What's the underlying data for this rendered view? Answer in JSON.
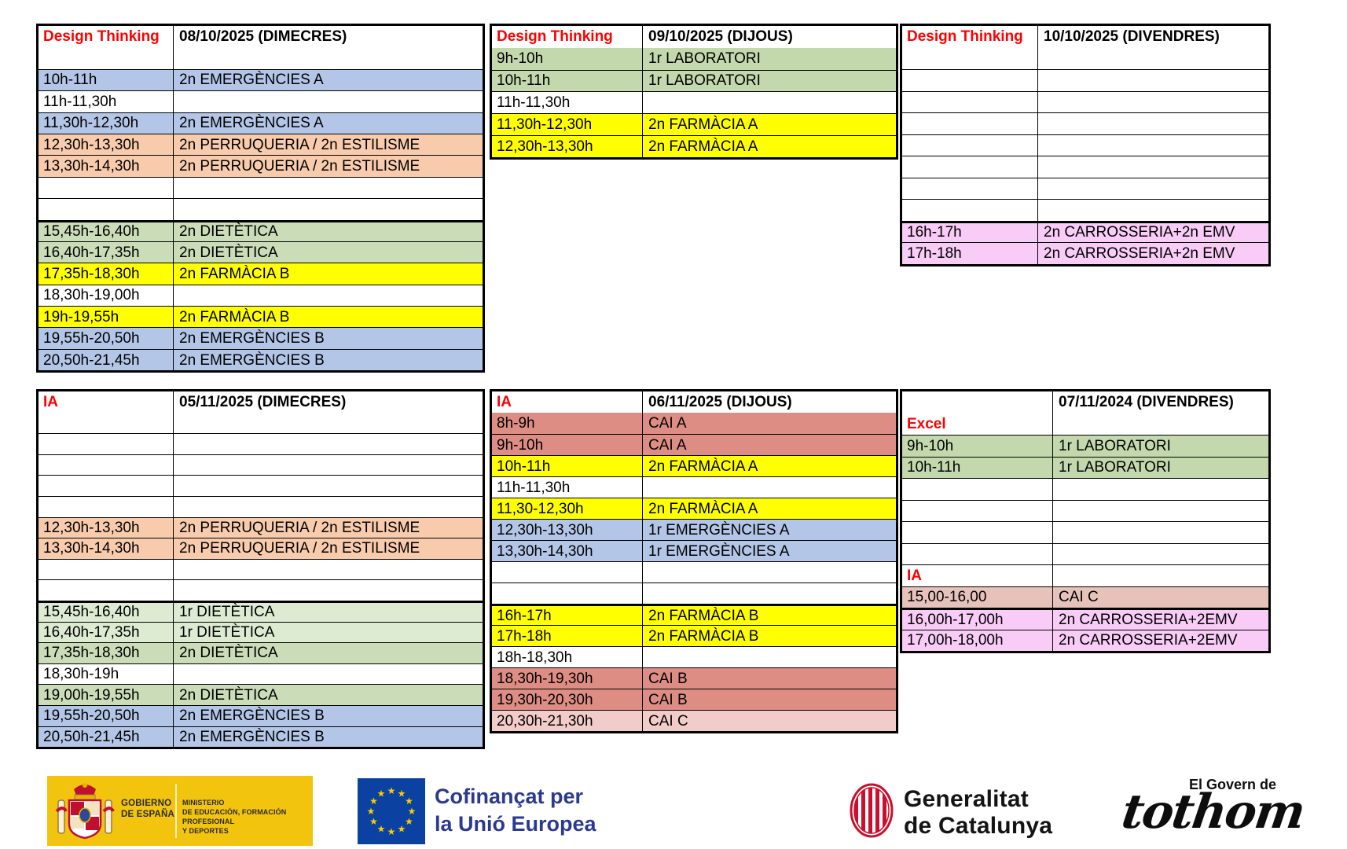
{
  "colors": {
    "blue": "#b4c6e7",
    "peach": "#f8cbad",
    "green": "#cadcb8",
    "green1": "#ddebd2",
    "lab": "#c3d9ad",
    "yellow": "#ffff00",
    "pink": "#f8ccf6",
    "salmon": "#dd8d84",
    "caic": "#f2ccc8",
    "caic2": "#e6c2bb",
    "label_red": "#fe0000",
    "border_black": "#000000"
  },
  "tables": [
    {
      "label": "Design Thinking",
      "date": "08/10/2025 (DIMECRES)",
      "rows": [
        {
          "time": "",
          "activity": ""
        },
        {
          "time": "10h-11h",
          "activity": "2n EMERGÈNCIES A",
          "color": "blue"
        },
        {
          "time": "11h-11,30h",
          "activity": ""
        },
        {
          "time": "11,30h-12,30h",
          "activity": "2n EMERGÈNCIES A",
          "color": "blue"
        },
        {
          "time": "12,30h-13,30h",
          "activity": "2n PERRUQUERIA / 2n ESTILISME",
          "color": "peach"
        },
        {
          "time": "13,30h-14,30h",
          "activity": "2n PERRUQUERIA / 2n ESTILISME",
          "color": "peach"
        },
        {
          "time": "",
          "activity": ""
        },
        {
          "time": "",
          "activity": ""
        },
        {
          "time": "15,45h-16,40h",
          "activity": "2n DIETÈTICA",
          "color": "green",
          "thick": true
        },
        {
          "time": "16,40h-17,35h",
          "activity": "2n DIETÈTICA",
          "color": "green"
        },
        {
          "time": "17,35h-18,30h",
          "activity": "2n FARMÀCIA B",
          "color": "yellow"
        },
        {
          "time": "18,30h-19,00h",
          "activity": ""
        },
        {
          "time": "19h-19,55h",
          "activity": "2n FARMÀCIA B",
          "color": "yellow"
        },
        {
          "time": "19,55h-20,50h",
          "activity": "2n EMERGÈNCIES B",
          "color": "blue"
        },
        {
          "time": "20,50h-21,45h",
          "activity": "2n EMERGÈNCIES B",
          "color": "blue"
        }
      ]
    },
    {
      "label": "Design Thinking",
      "date": "09/10/2025 (DIJOUS)",
      "rows": [
        {
          "time": "9h-10h",
          "activity": "1r LABORATORI",
          "color": "lab"
        },
        {
          "time": "10h-11h",
          "activity": "1r LABORATORI",
          "color": "lab"
        },
        {
          "time": "11h-11,30h",
          "activity": ""
        },
        {
          "time": "11,30h-12,30h",
          "activity": "2n FARMÀCIA A",
          "color": "yellow"
        },
        {
          "time": "12,30h-13,30h",
          "activity": "2n FARMÀCIA A",
          "color": "yellow"
        }
      ]
    },
    {
      "label": "Design Thinking",
      "date": "10/10/2025 (DIVENDRES)",
      "rows": [
        {
          "time": "",
          "activity": ""
        },
        {
          "time": "",
          "activity": ""
        },
        {
          "time": "",
          "activity": ""
        },
        {
          "time": "",
          "activity": ""
        },
        {
          "time": "",
          "activity": ""
        },
        {
          "time": "",
          "activity": ""
        },
        {
          "time": "",
          "activity": ""
        },
        {
          "time": "",
          "activity": ""
        },
        {
          "time": "16h-17h",
          "activity": "2n CARROSSERIA+2n EMV",
          "color": "pink",
          "thick": true
        },
        {
          "time": "17h-18h",
          "activity": "2n CARROSSERIA+2n EMV",
          "color": "pink"
        }
      ]
    },
    {
      "label": "IA",
      "date": "05/11/2025 (DIMECRES)",
      "rows": [
        {
          "time": "",
          "activity": ""
        },
        {
          "time": "",
          "activity": ""
        },
        {
          "time": "",
          "activity": ""
        },
        {
          "time": "",
          "activity": ""
        },
        {
          "time": "",
          "activity": ""
        },
        {
          "time": "12,30h-13,30h",
          "activity": "2n PERRUQUERIA / 2n ESTILISME",
          "color": "peach"
        },
        {
          "time": "13,30h-14,30h",
          "activity": "2n PERRUQUERIA / 2n ESTILISME",
          "color": "peach"
        },
        {
          "time": "",
          "activity": ""
        },
        {
          "time": "",
          "activity": ""
        },
        {
          "time": "15,45h-16,40h",
          "activity": "1r DIETÈTICA",
          "color": "green1",
          "thick": true
        },
        {
          "time": "16,40h-17,35h",
          "activity": "1r DIETÈTICA",
          "color": "green1"
        },
        {
          "time": "17,35h-18,30h",
          "activity": "2n DIETÈTICA",
          "color": "green"
        },
        {
          "time": "18,30h-19h",
          "activity": ""
        },
        {
          "time": "19,00h-19,55h",
          "activity": "2n DIETÈTICA",
          "color": "green"
        },
        {
          "time": "19,55h-20,50h",
          "activity": "2n EMERGÈNCIES B",
          "color": "blue"
        },
        {
          "time": "20,50h-21,45h",
          "activity": "2n EMERGÈNCIES B",
          "color": "blue"
        }
      ]
    },
    {
      "label": "IA",
      "date": "06/11/2025 (DIJOUS)",
      "rows": [
        {
          "time": "8h-9h",
          "activity": "CAI A",
          "color": "salmon"
        },
        {
          "time": "9h-10h",
          "activity": "CAI A",
          "color": "salmon"
        },
        {
          "time": "10h-11h",
          "activity": "2n FARMÀCIA A",
          "color": "yellow"
        },
        {
          "time": "11h-11,30h",
          "activity": ""
        },
        {
          "time": "11,30-12,30h",
          "activity": "2n FARMÀCIA A",
          "color": "yellow"
        },
        {
          "time": "12,30h-13,30h",
          "activity": "1r EMERGÈNCIES A",
          "color": "blue"
        },
        {
          "time": "13,30h-14,30h",
          "activity": "1r EMERGÈNCIES A",
          "color": "blue"
        },
        {
          "time": "",
          "activity": ""
        },
        {
          "time": "",
          "activity": ""
        },
        {
          "time": "16h-17h",
          "activity": "2n FARMÀCIA B",
          "color": "yellow",
          "thick": true
        },
        {
          "time": "17h-18h",
          "activity": "2n FARMÀCIA B",
          "color": "yellow"
        },
        {
          "time": "18h-18,30h",
          "activity": ""
        },
        {
          "time": "18,30h-19,30h",
          "activity": "CAI B",
          "color": "salmon"
        },
        {
          "time": "19,30h-20,30h",
          "activity": "CAI B",
          "color": "salmon"
        },
        {
          "time": "20,30h-21,30h",
          "activity": "CAI C",
          "color": "caic"
        }
      ]
    },
    {
      "label": "",
      "date": "07/11/2024 (DIVENDRES)",
      "rows": [
        {
          "time": "Excel",
          "activity": "",
          "red": true
        },
        {
          "time": "9h-10h",
          "activity": "1r LABORATORI",
          "color": "lab"
        },
        {
          "time": "10h-11h",
          "activity": "1r LABORATORI",
          "color": "lab"
        },
        {
          "time": "",
          "activity": ""
        },
        {
          "time": "",
          "activity": ""
        },
        {
          "time": "",
          "activity": ""
        },
        {
          "time": "",
          "activity": ""
        },
        {
          "time": "IA",
          "activity": "",
          "red": true
        },
        {
          "time": "15,00-16,00",
          "activity": "CAI C",
          "color": "caic2"
        },
        {
          "time": "16,00h-17,00h",
          "activity": "2n CARROSSERIA+2EMV",
          "color": "pink",
          "thick": true
        },
        {
          "time": "17,00h-18,00h",
          "activity": "2n CARROSSERIA+2EMV",
          "color": "pink"
        }
      ]
    }
  ],
  "footer": {
    "spain": {
      "gov_line1": "GOBIERNO",
      "gov_line2": "DE ESPAÑA",
      "ministry_line1": "MINISTERIO",
      "ministry_line2": "DE EDUCACIÓN, FORMACIÓN PROFESIONAL",
      "ministry_line3": "Y DEPORTES",
      "bg": "#f2c40d"
    },
    "eu": {
      "text_line1": "Cofinançat per",
      "text_line2": "la Unió Europea",
      "flag_blue": "#0b41a0",
      "star_gold": "#ffcc00",
      "text_color": "#2b3a8f"
    },
    "generalitat": {
      "line1": "Generalitat",
      "line2": "de Catalunya",
      "shield_red": "#c8102e"
    },
    "govern": {
      "small_text": "El Govern de",
      "script_text": "tothom"
    }
  }
}
